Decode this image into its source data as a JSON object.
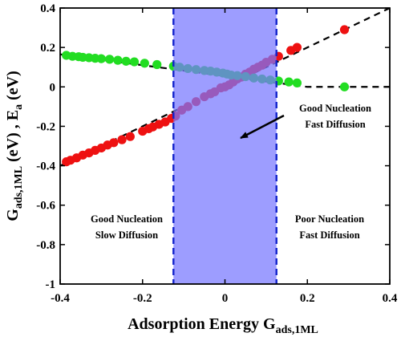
{
  "chart_data": {
    "type": "scatter",
    "xlabel": {
      "main": "Adsorption Energy G",
      "sub": "ads,1ML"
    },
    "ylabel": {
      "main1": "G",
      "sub1": "ads,1ML",
      "mid": " (eV) , E",
      "sub2": "a",
      "end": " (eV)"
    },
    "xlim": [
      -0.4,
      0.4
    ],
    "ylim": [
      -1,
      0.4
    ],
    "xticks": [
      "-0.4",
      "-0.2",
      "0",
      "0.2",
      "0.4"
    ],
    "yticks": [
      "-1",
      "-0.8",
      "-0.6",
      "-0.4",
      "-0.2",
      "0",
      "0.2",
      "0.4"
    ],
    "grid": false,
    "colors": {
      "red": "#ee1111",
      "green": "#22dd22",
      "band": "#7777ff",
      "band_edge": "#1122cc",
      "fit": "#000000"
    },
    "band": {
      "x_from": -0.125,
      "x_to": 0.125
    },
    "series": [
      {
        "color": "red",
        "points": [
          [
            -0.385,
            -0.38
          ],
          [
            -0.375,
            -0.372
          ],
          [
            -0.36,
            -0.36
          ],
          [
            -0.345,
            -0.346
          ],
          [
            -0.33,
            -0.335
          ],
          [
            -0.315,
            -0.322
          ],
          [
            -0.3,
            -0.31
          ],
          [
            -0.285,
            -0.295
          ],
          [
            -0.27,
            -0.283
          ],
          [
            -0.25,
            -0.268
          ],
          [
            -0.23,
            -0.252
          ],
          [
            -0.2,
            -0.225
          ],
          [
            -0.185,
            -0.212
          ],
          [
            -0.175,
            -0.203
          ],
          [
            -0.16,
            -0.19
          ],
          [
            -0.145,
            -0.178
          ],
          [
            -0.13,
            -0.16
          ],
          [
            -0.12,
            -0.148
          ],
          [
            -0.105,
            -0.118
          ],
          [
            -0.09,
            -0.1
          ],
          [
            -0.07,
            -0.075
          ],
          [
            -0.05,
            -0.05
          ],
          [
            -0.035,
            -0.035
          ],
          [
            -0.025,
            -0.025
          ],
          [
            -0.01,
            -0.005
          ],
          [
            0.0,
            0.0
          ],
          [
            0.01,
            0.01
          ],
          [
            0.02,
            0.025
          ],
          [
            0.03,
            0.04
          ],
          [
            0.04,
            0.05
          ],
          [
            0.05,
            0.065
          ],
          [
            0.06,
            0.075
          ],
          [
            0.07,
            0.09
          ],
          [
            0.08,
            0.1
          ],
          [
            0.09,
            0.11
          ],
          [
            0.1,
            0.125
          ],
          [
            0.115,
            0.14
          ],
          [
            0.13,
            0.155
          ],
          [
            0.16,
            0.185
          ],
          [
            0.175,
            0.2
          ],
          [
            0.29,
            0.29
          ]
        ],
        "fit": [
          [
            -0.4,
            -0.4
          ],
          [
            0.4,
            0.4
          ]
        ]
      },
      {
        "color": "green",
        "points": [
          [
            -0.385,
            0.16
          ],
          [
            -0.37,
            0.155
          ],
          [
            -0.355,
            0.153
          ],
          [
            -0.345,
            0.15
          ],
          [
            -0.33,
            0.148
          ],
          [
            -0.315,
            0.145
          ],
          [
            -0.3,
            0.143
          ],
          [
            -0.28,
            0.14
          ],
          [
            -0.26,
            0.135
          ],
          [
            -0.24,
            0.13
          ],
          [
            -0.22,
            0.127
          ],
          [
            -0.195,
            0.12
          ],
          [
            -0.165,
            0.113
          ],
          [
            -0.125,
            0.105
          ],
          [
            -0.11,
            0.1
          ],
          [
            -0.09,
            0.093
          ],
          [
            -0.07,
            0.088
          ],
          [
            -0.05,
            0.083
          ],
          [
            -0.035,
            0.08
          ],
          [
            -0.02,
            0.075
          ],
          [
            -0.005,
            0.07
          ],
          [
            0.005,
            0.065
          ],
          [
            0.015,
            0.06
          ],
          [
            0.03,
            0.057
          ],
          [
            0.05,
            0.052
          ],
          [
            0.07,
            0.045
          ],
          [
            0.09,
            0.04
          ],
          [
            0.11,
            0.035
          ],
          [
            0.13,
            0.03
          ],
          [
            0.155,
            0.025
          ],
          [
            0.175,
            0.02
          ],
          [
            0.29,
            0.0
          ]
        ],
        "fit": [
          [
            -0.4,
            0.165
          ],
          [
            0.2,
            0.0
          ],
          [
            0.4,
            0.0
          ]
        ]
      }
    ],
    "annotations": {
      "top_right": [
        "Good Nucleation",
        "Fast Diffusion"
      ],
      "bottom_left": [
        "Good Nucleation",
        "Slow Diffusion"
      ],
      "bottom_right": [
        "Poor Nucleation",
        "Fast Diffusion"
      ]
    }
  }
}
